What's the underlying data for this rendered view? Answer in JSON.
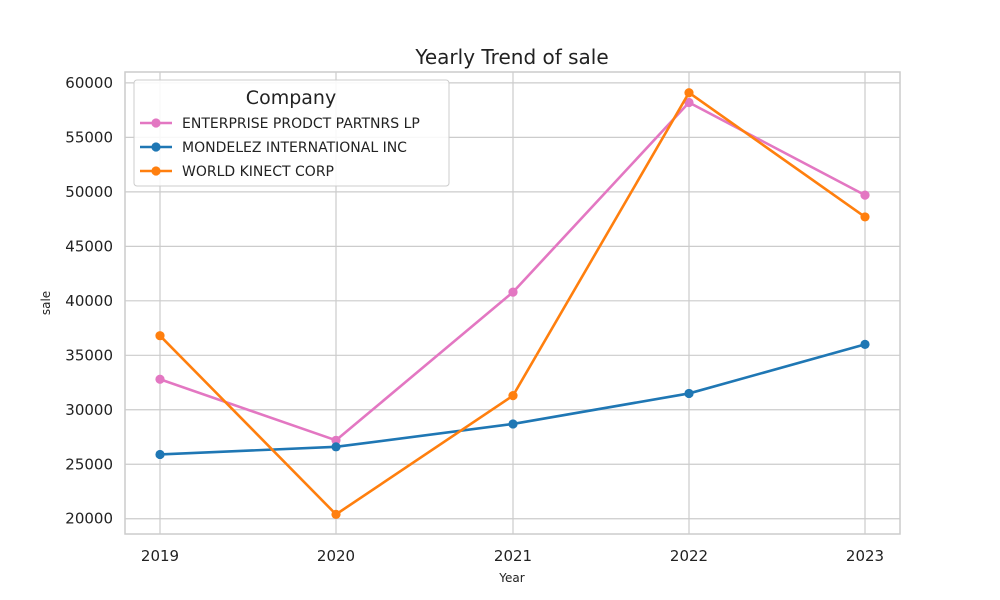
{
  "chart_data": {
    "type": "line",
    "title": "Yearly Trend of sale",
    "xlabel": "Year",
    "ylabel": "sale",
    "x": [
      "2019",
      "2020",
      "2021",
      "2022",
      "2023"
    ],
    "ylim": [
      18600,
      61000
    ],
    "yticks": [
      20000,
      25000,
      30000,
      35000,
      40000,
      45000,
      50000,
      55000,
      60000
    ],
    "grid": true,
    "legend": {
      "title": "Company",
      "placement": "top-left"
    },
    "series": [
      {
        "name": "ENTERPRISE PRODCT PARTNRS LP",
        "color": "#e377c2",
        "values": [
          32800,
          27200,
          40800,
          58200,
          49700
        ]
      },
      {
        "name": "MONDELEZ INTERNATIONAL INC",
        "color": "#1f77b4",
        "values": [
          25900,
          26600,
          28700,
          31500,
          36000
        ]
      },
      {
        "name": "WORLD KINECT CORP",
        "color": "#ff7f0e",
        "values": [
          36800,
          20400,
          31300,
          59100,
          47700
        ]
      }
    ]
  }
}
